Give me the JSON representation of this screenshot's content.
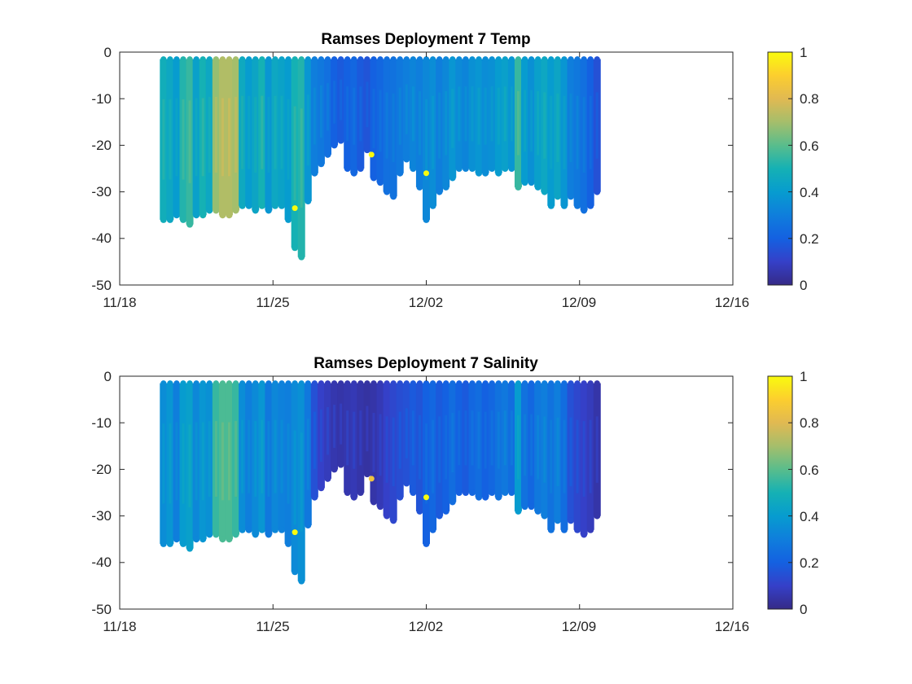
{
  "chart_data": [
    {
      "type": "scatter",
      "title": "Ramses Deployment 7 Temp",
      "xlabel": "",
      "ylabel": "",
      "x_tick_labels": [
        "11/18",
        "11/25",
        "12/02",
        "12/09",
        "12/16"
      ],
      "y_tick_labels": [
        "0",
        "-10",
        "-20",
        "-30",
        "-40",
        "-50"
      ],
      "xlim": [
        "2023-11-18",
        "2023-12-16"
      ],
      "ylim": [
        -50,
        0
      ],
      "colorbar": {
        "ticks": [
          "0",
          "0.2",
          "0.4",
          "0.6",
          "0.8",
          "1"
        ],
        "range": [
          0,
          1
        ],
        "colormap": "parula"
      },
      "profiles": [
        {
          "x": 20.0,
          "zmin": -36,
          "c": 0.48
        },
        {
          "x": 20.3,
          "zmin": -36,
          "c": 0.45
        },
        {
          "x": 20.6,
          "zmin": -35,
          "c": 0.4
        },
        {
          "x": 20.9,
          "zmin": -36,
          "c": 0.52
        },
        {
          "x": 21.2,
          "zmin": -37,
          "c": 0.55
        },
        {
          "x": 21.5,
          "zmin": -35,
          "c": 0.42
        },
        {
          "x": 21.8,
          "zmin": -35,
          "c": 0.5
        },
        {
          "x": 22.1,
          "zmin": -34,
          "c": 0.45
        },
        {
          "x": 22.4,
          "zmin": -34,
          "c": 0.68
        },
        {
          "x": 22.7,
          "zmin": -35,
          "c": 0.72
        },
        {
          "x": 23.0,
          "zmin": -35,
          "c": 0.72
        },
        {
          "x": 23.3,
          "zmin": -34,
          "c": 0.7
        },
        {
          "x": 23.6,
          "zmin": -33,
          "c": 0.46
        },
        {
          "x": 23.9,
          "zmin": -33,
          "c": 0.4
        },
        {
          "x": 24.2,
          "zmin": -34,
          "c": 0.44
        },
        {
          "x": 24.5,
          "zmin": -33,
          "c": 0.5
        },
        {
          "x": 24.8,
          "zmin": -34,
          "c": 0.38
        },
        {
          "x": 25.1,
          "zmin": -33,
          "c": 0.45
        },
        {
          "x": 25.4,
          "zmin": -33,
          "c": 0.43
        },
        {
          "x": 25.7,
          "zmin": -36,
          "c": 0.4
        },
        {
          "x": 26.0,
          "zmin": -42,
          "c": 0.5
        },
        {
          "x": 26.3,
          "zmin": -44,
          "c": 0.52
        },
        {
          "x": 26.6,
          "zmin": -32,
          "c": 0.38
        },
        {
          "x": 26.9,
          "zmin": -26,
          "c": 0.3
        },
        {
          "x": 27.2,
          "zmin": -24,
          "c": 0.28
        },
        {
          "x": 27.5,
          "zmin": -22,
          "c": 0.25
        },
        {
          "x": 27.8,
          "zmin": -20,
          "c": 0.2
        },
        {
          "x": 28.1,
          "zmin": -19,
          "c": 0.18
        },
        {
          "x": 28.4,
          "zmin": -25,
          "c": 0.2
        },
        {
          "x": 28.7,
          "zmin": -26,
          "c": 0.22
        },
        {
          "x": 29.0,
          "zmin": -25,
          "c": 0.18
        },
        {
          "x": 29.3,
          "zmin": -21,
          "c": 0.16
        },
        {
          "x": 29.6,
          "zmin": -27,
          "c": 0.2
        },
        {
          "x": 29.9,
          "zmin": -28,
          "c": 0.22
        },
        {
          "x": 30.2,
          "zmin": -30,
          "c": 0.25
        },
        {
          "x": 30.5,
          "zmin": -31,
          "c": 0.26
        },
        {
          "x": 30.8,
          "zmin": -26,
          "c": 0.28
        },
        {
          "x": 31.1,
          "zmin": -23,
          "c": 0.3
        },
        {
          "x": 31.4,
          "zmin": -25,
          "c": 0.32
        },
        {
          "x": 31.7,
          "zmin": -29,
          "c": 0.3
        },
        {
          "x": 32.0,
          "zmin": -36,
          "c": 0.33
        },
        {
          "x": 32.3,
          "zmin": -33,
          "c": 0.35
        },
        {
          "x": 32.6,
          "zmin": -30,
          "c": 0.3
        },
        {
          "x": 32.9,
          "zmin": -29,
          "c": 0.33
        },
        {
          "x": 33.2,
          "zmin": -27,
          "c": 0.38
        },
        {
          "x": 33.5,
          "zmin": -25,
          "c": 0.34
        },
        {
          "x": 33.8,
          "zmin": -25,
          "c": 0.32
        },
        {
          "x": 34.1,
          "zmin": -25,
          "c": 0.36
        },
        {
          "x": 34.4,
          "zmin": -26,
          "c": 0.38
        },
        {
          "x": 34.7,
          "zmin": -26,
          "c": 0.35
        },
        {
          "x": 35.0,
          "zmin": -25,
          "c": 0.36
        },
        {
          "x": 35.3,
          "zmin": -26,
          "c": 0.4
        },
        {
          "x": 35.6,
          "zmin": -25,
          "c": 0.42
        },
        {
          "x": 35.9,
          "zmin": -25,
          "c": 0.38
        },
        {
          "x": 36.2,
          "zmin": -29,
          "c": 0.55
        },
        {
          "x": 36.5,
          "zmin": -28,
          "c": 0.4
        },
        {
          "x": 36.8,
          "zmin": -28,
          "c": 0.36
        },
        {
          "x": 37.1,
          "zmin": -29,
          "c": 0.42
        },
        {
          "x": 37.4,
          "zmin": -30,
          "c": 0.45
        },
        {
          "x": 37.7,
          "zmin": -33,
          "c": 0.4
        },
        {
          "x": 38.0,
          "zmin": -31,
          "c": 0.44
        },
        {
          "x": 38.3,
          "zmin": -33,
          "c": 0.38
        },
        {
          "x": 38.6,
          "zmin": -31,
          "c": 0.3
        },
        {
          "x": 38.9,
          "zmin": -33,
          "c": 0.28
        },
        {
          "x": 39.2,
          "zmin": -34,
          "c": 0.25
        },
        {
          "x": 39.5,
          "zmin": -33,
          "c": 0.2
        },
        {
          "x": 39.8,
          "zmin": -30,
          "c": 0.15
        }
      ],
      "outliers": [
        {
          "x": 26.0,
          "y": -33.5,
          "c": 1.0
        },
        {
          "x": 29.5,
          "y": -22,
          "c": 1.0
        },
        {
          "x": 32.0,
          "y": -26,
          "c": 1.0
        }
      ]
    },
    {
      "type": "scatter",
      "title": "Ramses Deployment 7 Salinity",
      "xlabel": "",
      "ylabel": "",
      "x_tick_labels": [
        "11/18",
        "11/25",
        "12/02",
        "12/09",
        "12/16"
      ],
      "y_tick_labels": [
        "0",
        "-10",
        "-20",
        "-30",
        "-40",
        "-50"
      ],
      "xlim": [
        "2023-11-18",
        "2023-12-16"
      ],
      "ylim": [
        -50,
        0
      ],
      "colorbar": {
        "ticks": [
          "0",
          "0.2",
          "0.4",
          "0.6",
          "0.8",
          "1"
        ],
        "range": [
          0,
          1
        ],
        "colormap": "parula"
      },
      "profiles": [
        {
          "x": 20.0,
          "zmin": -36,
          "c": 0.35
        },
        {
          "x": 20.3,
          "zmin": -36,
          "c": 0.38
        },
        {
          "x": 20.6,
          "zmin": -35,
          "c": 0.3
        },
        {
          "x": 20.9,
          "zmin": -36,
          "c": 0.4
        },
        {
          "x": 21.2,
          "zmin": -37,
          "c": 0.42
        },
        {
          "x": 21.5,
          "zmin": -35,
          "c": 0.33
        },
        {
          "x": 21.8,
          "zmin": -35,
          "c": 0.38
        },
        {
          "x": 22.1,
          "zmin": -34,
          "c": 0.36
        },
        {
          "x": 22.4,
          "zmin": -34,
          "c": 0.55
        },
        {
          "x": 22.7,
          "zmin": -35,
          "c": 0.58
        },
        {
          "x": 23.0,
          "zmin": -35,
          "c": 0.58
        },
        {
          "x": 23.3,
          "zmin": -34,
          "c": 0.55
        },
        {
          "x": 23.6,
          "zmin": -33,
          "c": 0.35
        },
        {
          "x": 23.9,
          "zmin": -33,
          "c": 0.3
        },
        {
          "x": 24.2,
          "zmin": -34,
          "c": 0.34
        },
        {
          "x": 24.5,
          "zmin": -33,
          "c": 0.38
        },
        {
          "x": 24.8,
          "zmin": -34,
          "c": 0.28
        },
        {
          "x": 25.1,
          "zmin": -33,
          "c": 0.33
        },
        {
          "x": 25.4,
          "zmin": -33,
          "c": 0.31
        },
        {
          "x": 25.7,
          "zmin": -36,
          "c": 0.3
        },
        {
          "x": 26.0,
          "zmin": -42,
          "c": 0.34
        },
        {
          "x": 26.3,
          "zmin": -44,
          "c": 0.36
        },
        {
          "x": 26.6,
          "zmin": -32,
          "c": 0.28
        },
        {
          "x": 26.9,
          "zmin": -26,
          "c": 0.15
        },
        {
          "x": 27.2,
          "zmin": -24,
          "c": 0.1
        },
        {
          "x": 27.5,
          "zmin": -22,
          "c": 0.08
        },
        {
          "x": 27.8,
          "zmin": -20,
          "c": 0.06
        },
        {
          "x": 28.1,
          "zmin": -19,
          "c": 0.05
        },
        {
          "x": 28.4,
          "zmin": -25,
          "c": 0.06
        },
        {
          "x": 28.7,
          "zmin": -26,
          "c": 0.07
        },
        {
          "x": 29.0,
          "zmin": -25,
          "c": 0.05
        },
        {
          "x": 29.3,
          "zmin": -21,
          "c": 0.04
        },
        {
          "x": 29.6,
          "zmin": -27,
          "c": 0.05
        },
        {
          "x": 29.9,
          "zmin": -28,
          "c": 0.07
        },
        {
          "x": 30.2,
          "zmin": -30,
          "c": 0.1
        },
        {
          "x": 30.5,
          "zmin": -31,
          "c": 0.12
        },
        {
          "x": 30.8,
          "zmin": -26,
          "c": 0.14
        },
        {
          "x": 31.1,
          "zmin": -23,
          "c": 0.15
        },
        {
          "x": 31.4,
          "zmin": -25,
          "c": 0.18
        },
        {
          "x": 31.7,
          "zmin": -29,
          "c": 0.16
        },
        {
          "x": 32.0,
          "zmin": -36,
          "c": 0.2
        },
        {
          "x": 32.3,
          "zmin": -33,
          "c": 0.22
        },
        {
          "x": 32.6,
          "zmin": -30,
          "c": 0.18
        },
        {
          "x": 32.9,
          "zmin": -29,
          "c": 0.2
        },
        {
          "x": 33.2,
          "zmin": -27,
          "c": 0.24
        },
        {
          "x": 33.5,
          "zmin": -25,
          "c": 0.2
        },
        {
          "x": 33.8,
          "zmin": -25,
          "c": 0.18
        },
        {
          "x": 34.1,
          "zmin": -25,
          "c": 0.22
        },
        {
          "x": 34.4,
          "zmin": -26,
          "c": 0.24
        },
        {
          "x": 34.7,
          "zmin": -26,
          "c": 0.2
        },
        {
          "x": 35.0,
          "zmin": -25,
          "c": 0.22
        },
        {
          "x": 35.3,
          "zmin": -26,
          "c": 0.26
        },
        {
          "x": 35.6,
          "zmin": -25,
          "c": 0.28
        },
        {
          "x": 35.9,
          "zmin": -25,
          "c": 0.24
        },
        {
          "x": 36.2,
          "zmin": -29,
          "c": 0.4
        },
        {
          "x": 36.5,
          "zmin": -28,
          "c": 0.26
        },
        {
          "x": 36.8,
          "zmin": -28,
          "c": 0.22
        },
        {
          "x": 37.1,
          "zmin": -29,
          "c": 0.28
        },
        {
          "x": 37.4,
          "zmin": -30,
          "c": 0.3
        },
        {
          "x": 37.7,
          "zmin": -33,
          "c": 0.26
        },
        {
          "x": 38.0,
          "zmin": -31,
          "c": 0.3
        },
        {
          "x": 38.3,
          "zmin": -33,
          "c": 0.24
        },
        {
          "x": 38.6,
          "zmin": -31,
          "c": 0.15
        },
        {
          "x": 38.9,
          "zmin": -33,
          "c": 0.12
        },
        {
          "x": 39.2,
          "zmin": -34,
          "c": 0.1
        },
        {
          "x": 39.5,
          "zmin": -33,
          "c": 0.08
        },
        {
          "x": 39.8,
          "zmin": -30,
          "c": 0.05
        }
      ],
      "outliers": [
        {
          "x": 26.0,
          "y": -33.5,
          "c": 1.0
        },
        {
          "x": 29.5,
          "y": -22,
          "c": 0.85
        },
        {
          "x": 32.0,
          "y": -26,
          "c": 1.0
        }
      ]
    }
  ]
}
